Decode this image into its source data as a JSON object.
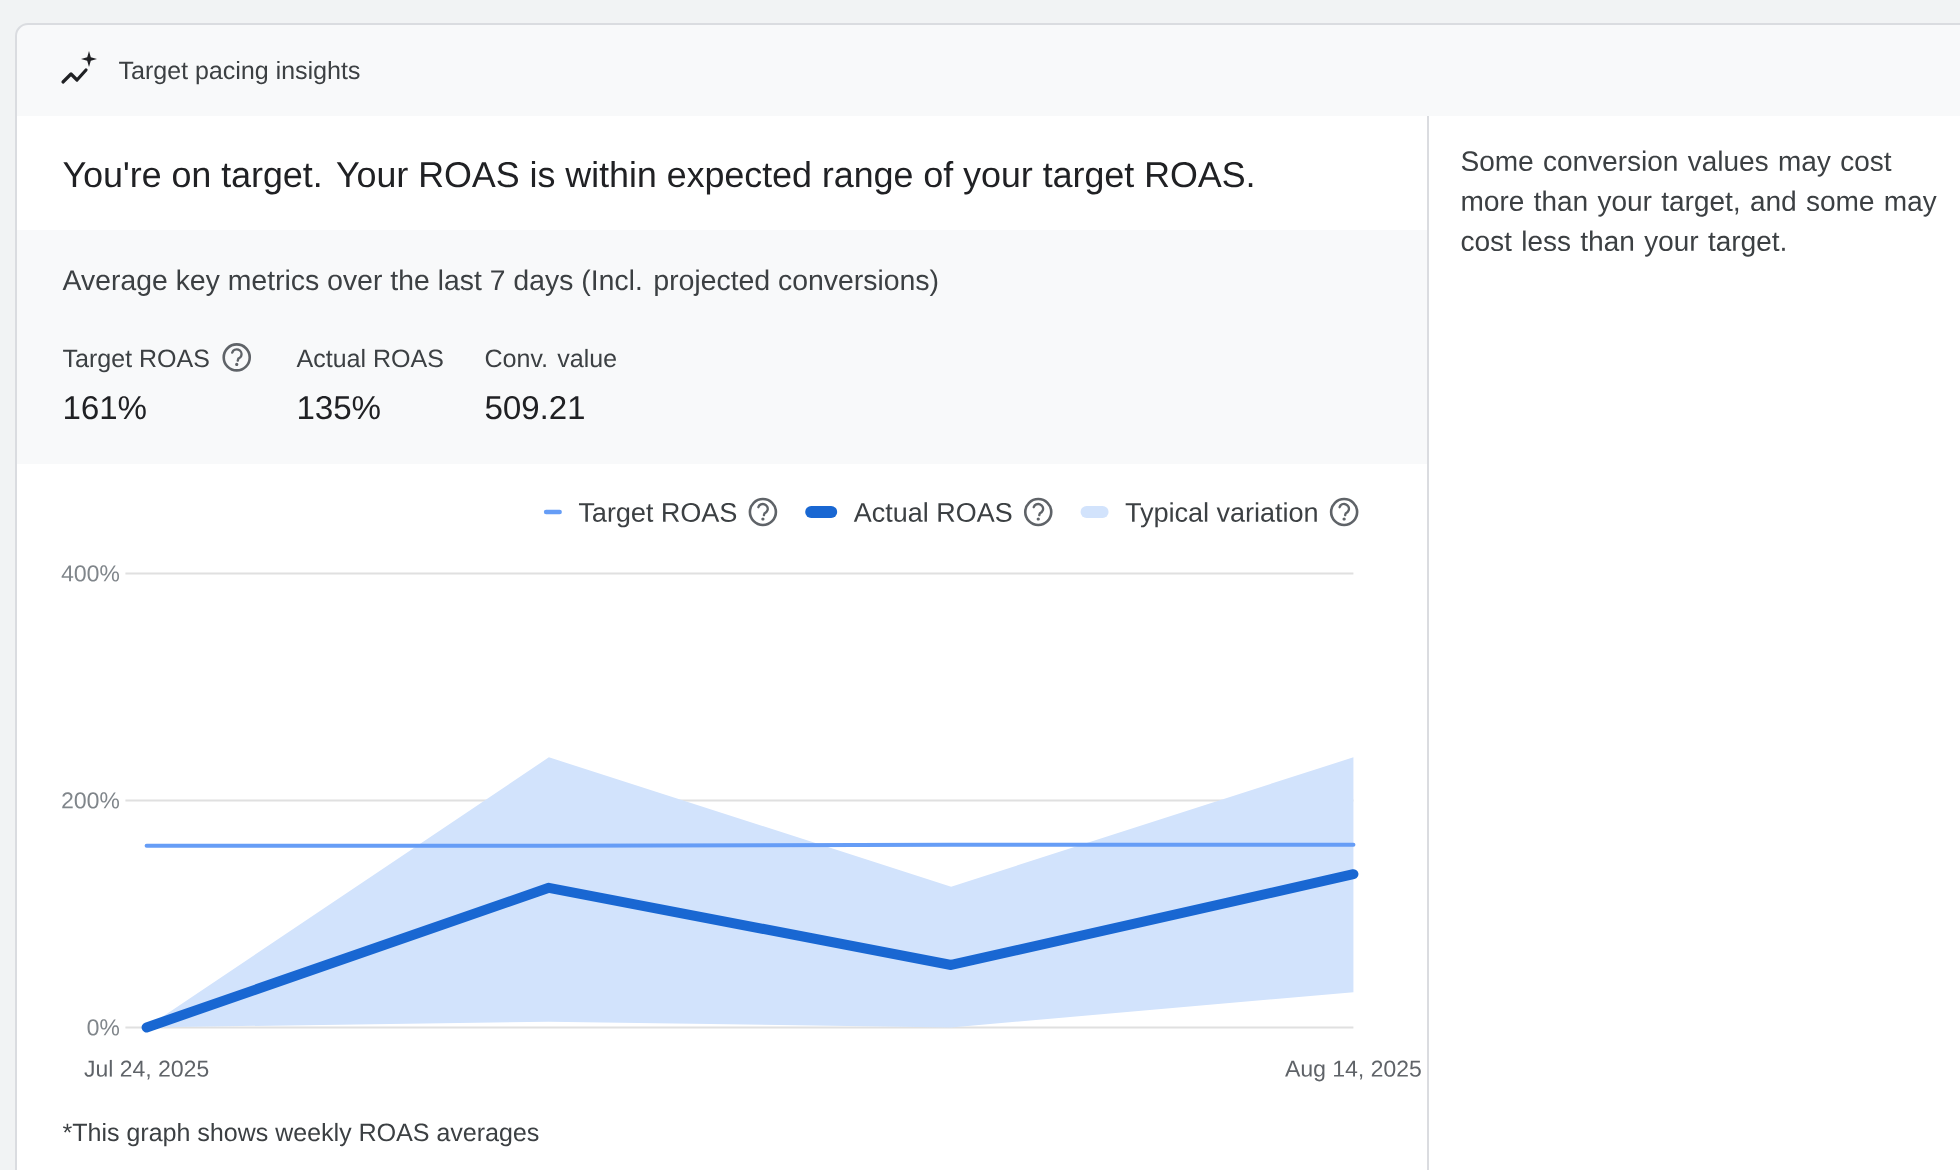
{
  "chart_data": {
    "type": "line",
    "title": "Target pacing insights",
    "subtitle": "You're on target. Your ROAS is within expected range of your target ROAS.",
    "categories": [
      "Jul 24, 2025",
      null,
      null,
      "Aug 14, 2025"
    ],
    "series": [
      {
        "name": "Target ROAS",
        "color": "#669df6",
        "values": [
          160,
          160,
          161,
          161
        ]
      },
      {
        "name": "Actual ROAS",
        "color": "#1967d2",
        "values": [
          0,
          123,
          55,
          135
        ]
      },
      {
        "name": "Typical variation",
        "color": "#d2e3fc",
        "values": [
          null,
          null,
          null,
          null
        ],
        "lower": [
          0,
          5,
          0,
          31
        ],
        "upper": [
          0,
          238,
          124,
          238
        ]
      }
    ],
    "ylim": [
      0,
      400
    ],
    "yticks": [
      {
        "value": 0,
        "label": "0%"
      },
      {
        "value": 200,
        "label": "200%"
      },
      {
        "value": 400,
        "label": "400%"
      }
    ],
    "grid": "y",
    "legend": "top right",
    "annotations": [
      "Average key metrics over the last 7 days (Incl. projected conversions)",
      "Target ROAS",
      "161%",
      "Actual ROAS",
      "135%",
      "Conv. value",
      "509.21",
      "*This graph shows weekly ROAS averages",
      "Some conversion values may cost more than your target, and some may cost less than your target."
    ]
  }
}
